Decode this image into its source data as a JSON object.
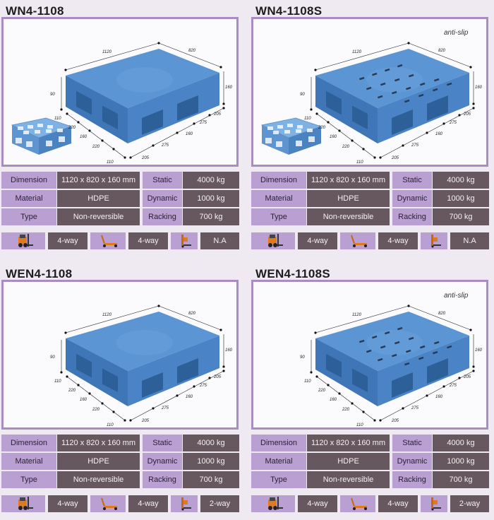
{
  "cards": [
    {
      "title": "WN4-1108",
      "anti_slip": "",
      "dims": {
        "length": "1120",
        "width": "820",
        "h1": "160",
        "h2": "90",
        "a": "110",
        "b": "220",
        "c": "160",
        "d": "220",
        "e": "110",
        "f": "205",
        "g": "275",
        "h": "160",
        "i": "275",
        "j": "205"
      },
      "specs": {
        "dimension_label": "Dimension",
        "dimension": "1120 x 820 x 160 mm",
        "material_label": "Material",
        "material": "HDPE",
        "type_label": "Type",
        "type": "Non-reversible",
        "static_label": "Static",
        "static": "4000 kg",
        "dynamic_label": "Dynamic",
        "dynamic": "1000 kg",
        "racking_label": "Racking",
        "racking": "700 kg"
      },
      "handling": {
        "forklift": "4-way",
        "pallet_jack": "4-way",
        "stacker": "N.A"
      }
    },
    {
      "title": "WN4-1108S",
      "anti_slip": "anti-slip",
      "dims": {
        "length": "1120",
        "width": "820",
        "h1": "160",
        "h2": "90",
        "a": "110",
        "b": "220",
        "c": "160",
        "d": "220",
        "e": "110",
        "f": "205",
        "g": "275",
        "h": "160",
        "i": "275",
        "j": "205"
      },
      "specs": {
        "dimension_label": "Dimension",
        "dimension": "1120 x 820 x 160 mm",
        "material_label": "Material",
        "material": "HDPE",
        "type_label": "Type",
        "type": "Non-reversible",
        "static_label": "Static",
        "static": "4000 kg",
        "dynamic_label": "Dynamic",
        "dynamic": "1000 kg",
        "racking_label": "Racking",
        "racking": "700 kg"
      },
      "handling": {
        "forklift": "4-way",
        "pallet_jack": "4-way",
        "stacker": "N.A"
      }
    },
    {
      "title": "WEN4-1108",
      "anti_slip": "",
      "dims": {
        "length": "1120",
        "width": "820",
        "h1": "160",
        "h2": "90",
        "a": "110",
        "b": "220",
        "c": "160",
        "d": "220",
        "e": "110",
        "f": "205",
        "g": "275",
        "h": "160",
        "i": "275",
        "j": "205"
      },
      "specs": {
        "dimension_label": "Dimension",
        "dimension": "1120 x 820 x 160 mm",
        "material_label": "Material",
        "material": "HDPE",
        "type_label": "Type",
        "type": "Non-reversible",
        "static_label": "Static",
        "static": "4000 kg",
        "dynamic_label": "Dynamic",
        "dynamic": "1000 kg",
        "racking_label": "Racking",
        "racking": "700 kg"
      },
      "handling": {
        "forklift": "4-way",
        "pallet_jack": "4-way",
        "stacker": "2-way"
      }
    },
    {
      "title": "WEN4-1108S",
      "anti_slip": "anti-slip",
      "dims": {
        "length": "1120",
        "width": "820",
        "h1": "160",
        "h2": "90",
        "a": "110",
        "b": "220",
        "c": "160",
        "d": "220",
        "e": "110",
        "f": "205",
        "g": "275",
        "h": "160",
        "i": "275",
        "j": "205"
      },
      "specs": {
        "dimension_label": "Dimension",
        "dimension": "1120 x 820 x 160 mm",
        "material_label": "Material",
        "material": "HDPE",
        "type_label": "Type",
        "type": "Non-reversible",
        "static_label": "Static",
        "static": "4000 kg",
        "dynamic_label": "Dynamic",
        "dynamic": "1000 kg",
        "racking_label": "Racking",
        "racking": "700 kg"
      },
      "handling": {
        "forklift": "4-way",
        "pallet_jack": "4-way",
        "stacker": "2-way"
      }
    }
  ],
  "icons": {
    "forklift": "forklift-icon",
    "pallet_jack": "pallet-jack-icon",
    "stacker": "stacker-icon"
  },
  "colors": {
    "label_bg": "#b99fd2",
    "value_bg": "#67585f",
    "frame_border": "#a98cc2",
    "pallet_blue": "#4f86c9"
  }
}
